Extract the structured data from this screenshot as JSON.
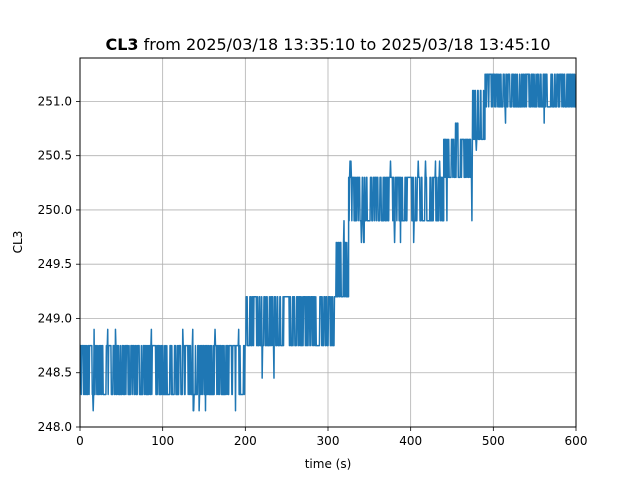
{
  "colors": {
    "series": "#1f77b4",
    "grid": "#b0b0b0",
    "axis": "#000000",
    "background": "#ffffff"
  },
  "chart_data": {
    "type": "line",
    "title_bold": "CL3",
    "title_rest": " from 2025/03/18 13:35:10 to 2025/03/18 13:45:10",
    "xlabel": "time (s)",
    "ylabel": "CL3",
    "xlim": [
      0,
      600
    ],
    "ylim": [
      248.0,
      251.4
    ],
    "x_ticks": [
      "0",
      "100",
      "200",
      "300",
      "400",
      "500",
      "600"
    ],
    "y_ticks": [
      "248.0",
      "248.5",
      "249.0",
      "249.5",
      "250.0",
      "250.5",
      "251.0"
    ],
    "grid": true,
    "legend": "none",
    "series": [
      {
        "segments": [
          {
            "x_range": [
              0,
              200
            ],
            "band": [
              248.3,
              248.75
            ],
            "spikes_high": [
              248.9
            ],
            "spikes_low": [
              248.15
            ]
          },
          {
            "x_range": [
              200,
              310
            ],
            "band": [
              248.75,
              249.2
            ],
            "spikes_high": [
              249.2
            ],
            "spikes_low": [
              248.45
            ]
          },
          {
            "x_range": [
              310,
              325
            ],
            "band": [
              249.2,
              249.7
            ],
            "spikes_high": [
              249.9
            ],
            "spikes_low": [
              249.15
            ]
          },
          {
            "x_range": [
              325,
              440
            ],
            "band": [
              249.9,
              250.3
            ],
            "spikes_high": [
              250.45
            ],
            "spikes_low": [
              249.7
            ]
          },
          {
            "x_range": [
              440,
              475
            ],
            "band": [
              250.3,
              250.65
            ],
            "spikes_high": [
              250.8
            ],
            "spikes_low": [
              249.9
            ]
          },
          {
            "x_range": [
              475,
              490
            ],
            "band": [
              250.65,
              251.1
            ],
            "spikes_high": [
              251.1
            ],
            "spikes_low": [
              250.55
            ]
          },
          {
            "x_range": [
              490,
              600
            ],
            "band": [
              250.95,
              251.25
            ],
            "spikes_high": [
              251.25
            ],
            "spikes_low": [
              250.8
            ]
          }
        ]
      }
    ]
  }
}
